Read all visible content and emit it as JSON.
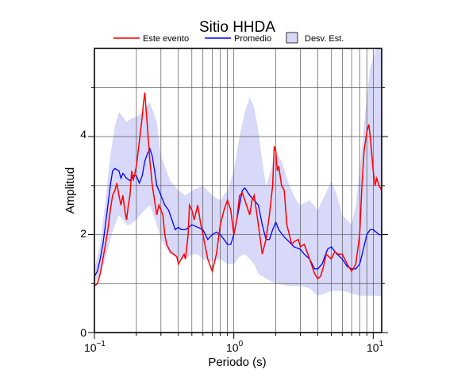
{
  "chart_data": {
    "type": "line",
    "title": "Sitio HHDA",
    "xlabel": "Periodo (s)",
    "ylabel": "Amplitud",
    "x_scale": "log",
    "xlim": [
      0.1,
      11.5
    ],
    "ylim": [
      0,
      5.8
    ],
    "x_ticks": [
      {
        "base": "10",
        "exp": "−1",
        "value": 0.1
      },
      {
        "base": "10",
        "exp": "0",
        "value": 1
      },
      {
        "base": "10",
        "exp": "1",
        "value": 10
      }
    ],
    "y_ticks": [
      0,
      2,
      4
    ],
    "grid": true,
    "legend_position": "top",
    "legend": [
      {
        "label": "Este evento",
        "kind": "line",
        "color": "#ff0000"
      },
      {
        "label": "Promedio",
        "kind": "line",
        "color": "#0000ff"
      },
      {
        "label": "Desv. Est.",
        "kind": "patch",
        "color": "#d8d8f8"
      }
    ],
    "series": [
      {
        "name": "Este evento",
        "color": "#ff0000",
        "points": [
          [
            0.1,
            0.95
          ],
          [
            0.105,
            1.0
          ],
          [
            0.11,
            1.2
          ],
          [
            0.115,
            1.5
          ],
          [
            0.12,
            1.8
          ],
          [
            0.125,
            2.1
          ],
          [
            0.13,
            2.5
          ],
          [
            0.135,
            2.8
          ],
          [
            0.14,
            2.9
          ],
          [
            0.145,
            3.05
          ],
          [
            0.15,
            2.8
          ],
          [
            0.155,
            2.6
          ],
          [
            0.16,
            2.8
          ],
          [
            0.165,
            2.5
          ],
          [
            0.17,
            2.3
          ],
          [
            0.175,
            2.6
          ],
          [
            0.18,
            2.8
          ],
          [
            0.185,
            3.3
          ],
          [
            0.19,
            3.1
          ],
          [
            0.2,
            3.4
          ],
          [
            0.21,
            3.9
          ],
          [
            0.22,
            4.4
          ],
          [
            0.225,
            4.7
          ],
          [
            0.23,
            4.9
          ],
          [
            0.24,
            4.2
          ],
          [
            0.25,
            3.5
          ],
          [
            0.26,
            3.0
          ],
          [
            0.27,
            2.7
          ],
          [
            0.28,
            2.4
          ],
          [
            0.29,
            2.6
          ],
          [
            0.3,
            2.5
          ],
          [
            0.31,
            2.4
          ],
          [
            0.32,
            2.0
          ],
          [
            0.33,
            1.8
          ],
          [
            0.35,
            1.65
          ],
          [
            0.37,
            1.6
          ],
          [
            0.39,
            1.55
          ],
          [
            0.4,
            1.4
          ],
          [
            0.42,
            1.5
          ],
          [
            0.44,
            1.6
          ],
          [
            0.45,
            1.5
          ],
          [
            0.47,
            2.0
          ],
          [
            0.48,
            2.6
          ],
          [
            0.5,
            2.5
          ],
          [
            0.52,
            2.3
          ],
          [
            0.55,
            2.6
          ],
          [
            0.58,
            2.2
          ],
          [
            0.6,
            2.0
          ],
          [
            0.62,
            1.8
          ],
          [
            0.65,
            1.5
          ],
          [
            0.7,
            1.25
          ],
          [
            0.75,
            1.6
          ],
          [
            0.8,
            2.2
          ],
          [
            0.85,
            2.5
          ],
          [
            0.9,
            2.7
          ],
          [
            0.95,
            2.5
          ],
          [
            1.0,
            2.0
          ],
          [
            1.05,
            2.3
          ],
          [
            1.1,
            2.8
          ],
          [
            1.15,
            2.85
          ],
          [
            1.2,
            2.7
          ],
          [
            1.3,
            2.4
          ],
          [
            1.35,
            2.7
          ],
          [
            1.4,
            2.8
          ],
          [
            1.45,
            2.5
          ],
          [
            1.5,
            2.2
          ],
          [
            1.6,
            1.6
          ],
          [
            1.7,
            1.9
          ],
          [
            1.8,
            2.4
          ],
          [
            1.9,
            3.0
          ],
          [
            1.95,
            3.8
          ],
          [
            2.0,
            3.7
          ],
          [
            2.05,
            3.3
          ],
          [
            2.1,
            3.4
          ],
          [
            2.2,
            3.0
          ],
          [
            2.3,
            2.9
          ],
          [
            2.4,
            2.2
          ],
          [
            2.5,
            2.0
          ],
          [
            2.6,
            1.8
          ],
          [
            2.7,
            1.85
          ],
          [
            2.9,
            1.9
          ],
          [
            3.0,
            1.75
          ],
          [
            3.2,
            1.8
          ],
          [
            3.4,
            1.6
          ],
          [
            3.6,
            1.4
          ],
          [
            3.8,
            1.2
          ],
          [
            4.0,
            1.1
          ],
          [
            4.2,
            1.15
          ],
          [
            4.4,
            1.35
          ],
          [
            4.6,
            1.6
          ],
          [
            4.8,
            1.55
          ],
          [
            5.0,
            1.5
          ],
          [
            5.3,
            1.65
          ],
          [
            5.6,
            1.6
          ],
          [
            6.0,
            1.6
          ],
          [
            6.5,
            1.4
          ],
          [
            7.0,
            1.25
          ],
          [
            7.5,
            1.4
          ],
          [
            8.0,
            2.0
          ],
          [
            8.3,
            3.0
          ],
          [
            8.6,
            3.7
          ],
          [
            9.0,
            4.1
          ],
          [
            9.3,
            4.25
          ],
          [
            9.6,
            3.9
          ],
          [
            10.0,
            3.3
          ],
          [
            10.3,
            3.0
          ],
          [
            10.6,
            3.15
          ],
          [
            11.0,
            3.0
          ],
          [
            11.5,
            2.9
          ]
        ]
      },
      {
        "name": "Promedio",
        "color": "#0000ff",
        "points": [
          [
            0.1,
            1.15
          ],
          [
            0.105,
            1.25
          ],
          [
            0.11,
            1.5
          ],
          [
            0.115,
            1.8
          ],
          [
            0.12,
            2.2
          ],
          [
            0.125,
            2.6
          ],
          [
            0.13,
            3.0
          ],
          [
            0.135,
            3.3
          ],
          [
            0.14,
            3.35
          ],
          [
            0.15,
            3.3
          ],
          [
            0.155,
            3.15
          ],
          [
            0.16,
            3.25
          ],
          [
            0.17,
            3.15
          ],
          [
            0.18,
            3.1
          ],
          [
            0.19,
            3.2
          ],
          [
            0.2,
            3.2
          ],
          [
            0.21,
            3.05
          ],
          [
            0.22,
            3.2
          ],
          [
            0.23,
            3.5
          ],
          [
            0.24,
            3.65
          ],
          [
            0.25,
            3.75
          ],
          [
            0.26,
            3.6
          ],
          [
            0.27,
            3.3
          ],
          [
            0.28,
            3.0
          ],
          [
            0.3,
            2.8
          ],
          [
            0.32,
            2.6
          ],
          [
            0.34,
            2.5
          ],
          [
            0.36,
            2.3
          ],
          [
            0.38,
            2.1
          ],
          [
            0.4,
            2.15
          ],
          [
            0.42,
            2.1
          ],
          [
            0.45,
            2.1
          ],
          [
            0.5,
            2.2
          ],
          [
            0.55,
            2.15
          ],
          [
            0.6,
            2.1
          ],
          [
            0.65,
            1.9
          ],
          [
            0.7,
            2.0
          ],
          [
            0.75,
            2.05
          ],
          [
            0.8,
            2.0
          ],
          [
            0.85,
            1.9
          ],
          [
            0.9,
            1.8
          ],
          [
            0.95,
            1.8
          ],
          [
            1.0,
            2.0
          ],
          [
            1.05,
            2.3
          ],
          [
            1.1,
            2.6
          ],
          [
            1.15,
            2.9
          ],
          [
            1.2,
            2.95
          ],
          [
            1.3,
            2.8
          ],
          [
            1.4,
            2.7
          ],
          [
            1.5,
            2.6
          ],
          [
            1.6,
            2.2
          ],
          [
            1.7,
            1.9
          ],
          [
            1.8,
            1.9
          ],
          [
            1.9,
            2.1
          ],
          [
            2.0,
            2.25
          ],
          [
            2.1,
            2.1
          ],
          [
            2.3,
            1.95
          ],
          [
            2.5,
            1.85
          ],
          [
            2.7,
            1.75
          ],
          [
            3.0,
            1.7
          ],
          [
            3.2,
            1.6
          ],
          [
            3.5,
            1.5
          ],
          [
            3.8,
            1.3
          ],
          [
            4.0,
            1.3
          ],
          [
            4.3,
            1.4
          ],
          [
            4.7,
            1.7
          ],
          [
            5.0,
            1.75
          ],
          [
            5.5,
            1.6
          ],
          [
            6.0,
            1.5
          ],
          [
            6.5,
            1.35
          ],
          [
            7.0,
            1.3
          ],
          [
            7.5,
            1.3
          ],
          [
            8.0,
            1.4
          ],
          [
            8.5,
            1.7
          ],
          [
            9.0,
            2.0
          ],
          [
            9.5,
            2.1
          ],
          [
            10.0,
            2.1
          ],
          [
            10.5,
            2.05
          ],
          [
            11.0,
            2.0
          ],
          [
            11.5,
            2.0
          ]
        ]
      },
      {
        "name": "Desv. Est.",
        "color": "#d8d8f8",
        "band_upper": [
          [
            0.1,
            1.3
          ],
          [
            0.11,
            1.8
          ],
          [
            0.12,
            2.7
          ],
          [
            0.13,
            3.6
          ],
          [
            0.14,
            4.2
          ],
          [
            0.15,
            4.5
          ],
          [
            0.16,
            4.4
          ],
          [
            0.17,
            4.3
          ],
          [
            0.18,
            4.35
          ],
          [
            0.2,
            4.4
          ],
          [
            0.22,
            4.5
          ],
          [
            0.25,
            4.7
          ],
          [
            0.28,
            4.3
          ],
          [
            0.3,
            3.6
          ],
          [
            0.35,
            3.1
          ],
          [
            0.4,
            2.9
          ],
          [
            0.45,
            2.8
          ],
          [
            0.5,
            2.9
          ],
          [
            0.55,
            2.95
          ],
          [
            0.6,
            3.0
          ],
          [
            0.7,
            2.8
          ],
          [
            0.8,
            2.7
          ],
          [
            0.9,
            2.9
          ],
          [
            1.0,
            3.3
          ],
          [
            1.1,
            4.0
          ],
          [
            1.2,
            4.5
          ],
          [
            1.3,
            4.8
          ],
          [
            1.4,
            4.6
          ],
          [
            1.5,
            4.1
          ],
          [
            1.6,
            3.5
          ],
          [
            1.7,
            3.0
          ],
          [
            1.8,
            3.2
          ],
          [
            2.0,
            3.7
          ],
          [
            2.2,
            3.5
          ],
          [
            2.5,
            3.0
          ],
          [
            2.8,
            2.7
          ],
          [
            3.0,
            2.6
          ],
          [
            3.5,
            2.7
          ],
          [
            4.0,
            2.5
          ],
          [
            4.5,
            2.8
          ],
          [
            5.0,
            3.1
          ],
          [
            5.5,
            2.8
          ],
          [
            6.0,
            2.4
          ],
          [
            7.0,
            2.2
          ],
          [
            7.5,
            2.6
          ],
          [
            8.0,
            3.3
          ],
          [
            8.5,
            4.1
          ],
          [
            9.0,
            4.8
          ],
          [
            9.5,
            5.4
          ],
          [
            10.0,
            5.6
          ],
          [
            10.5,
            5.8
          ],
          [
            11.5,
            5.8
          ]
        ],
        "band_lower": [
          [
            0.1,
            1.0
          ],
          [
            0.11,
            1.2
          ],
          [
            0.12,
            1.5
          ],
          [
            0.13,
            1.9
          ],
          [
            0.14,
            2.2
          ],
          [
            0.15,
            2.4
          ],
          [
            0.16,
            2.3
          ],
          [
            0.17,
            2.2
          ],
          [
            0.18,
            2.2
          ],
          [
            0.2,
            2.3
          ],
          [
            0.22,
            2.45
          ],
          [
            0.25,
            2.6
          ],
          [
            0.28,
            2.2
          ],
          [
            0.3,
            1.9
          ],
          [
            0.35,
            1.6
          ],
          [
            0.4,
            1.5
          ],
          [
            0.45,
            1.5
          ],
          [
            0.5,
            1.6
          ],
          [
            0.55,
            1.6
          ],
          [
            0.6,
            1.5
          ],
          [
            0.7,
            1.45
          ],
          [
            0.8,
            1.5
          ],
          [
            0.9,
            1.4
          ],
          [
            1.0,
            1.4
          ],
          [
            1.1,
            1.55
          ],
          [
            1.2,
            1.6
          ],
          [
            1.3,
            1.5
          ],
          [
            1.4,
            1.4
          ],
          [
            1.5,
            1.2
          ],
          [
            1.7,
            1.1
          ],
          [
            2.0,
            1.0
          ],
          [
            2.5,
            0.95
          ],
          [
            3.0,
            0.95
          ],
          [
            3.5,
            0.9
          ],
          [
            4.0,
            0.75
          ],
          [
            4.5,
            0.8
          ],
          [
            5.0,
            0.85
          ],
          [
            6.0,
            0.85
          ],
          [
            7.0,
            0.8
          ],
          [
            8.0,
            0.75
          ],
          [
            9.0,
            0.75
          ],
          [
            10.0,
            0.75
          ],
          [
            11.0,
            0.75
          ],
          [
            11.5,
            0.75
          ]
        ]
      }
    ]
  }
}
